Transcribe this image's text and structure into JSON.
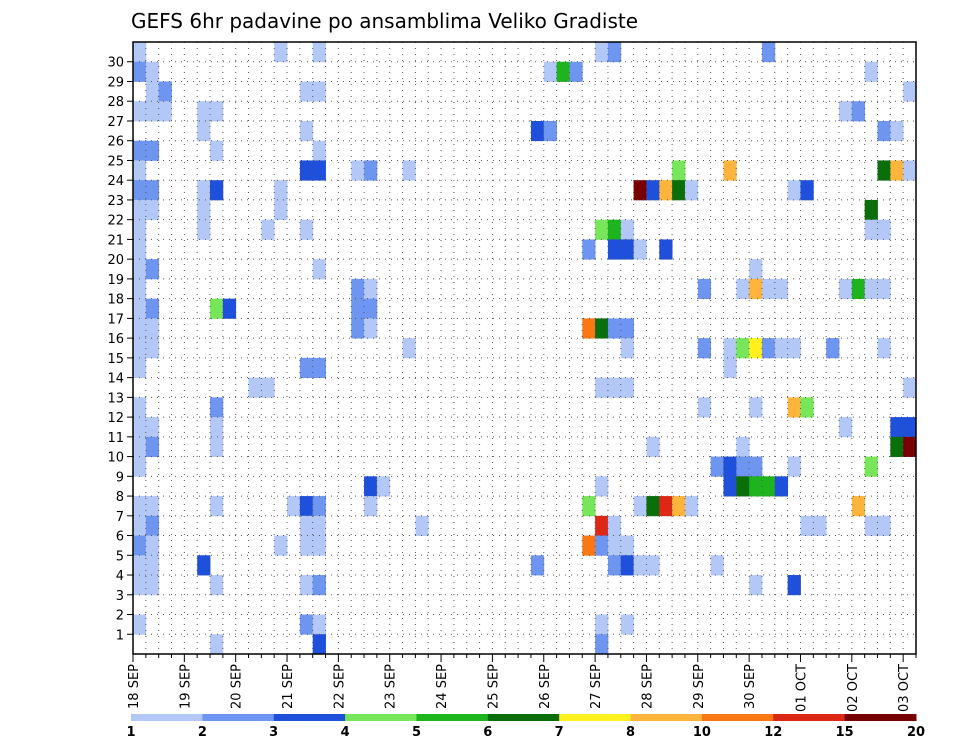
{
  "chart_data": {
    "type": "heatmap",
    "title": "GEFS 6hr padavine po ansamblima Veliko Gradiste",
    "xlabel": "",
    "ylabel": "",
    "x_tick_labels": [
      "18 SEP",
      "19 SEP",
      "20 SEP",
      "21 SEP",
      "22 SEP",
      "23 SEP",
      "24 SEP",
      "25 SEP",
      "26 SEP",
      "27 SEP",
      "28 SEP",
      "29 SEP",
      "30 SEP",
      "01 OCT",
      "02 OCT",
      "03 OCT"
    ],
    "x_range": [
      0,
      61
    ],
    "y_tick_labels": [
      "1",
      "2",
      "3",
      "4",
      "5",
      "6",
      "7",
      "8",
      "9",
      "10",
      "11",
      "12",
      "13",
      "14",
      "15",
      "16",
      "17",
      "18",
      "19",
      "20",
      "21",
      "22",
      "23",
      "24",
      "25",
      "26",
      "27",
      "28",
      "29",
      "30"
    ],
    "y_range": [
      0,
      30
    ],
    "grid": true,
    "color_scale": {
      "colors": [
        "#b4c8f8",
        "#6e96f0",
        "#1e50dc",
        "#78e65a",
        "#1eb41e",
        "#0a6e0a",
        "#fff01e",
        "#ffb43c",
        "#fa7814",
        "#dc2814",
        "#780000"
      ],
      "labels": [
        "1",
        "2",
        "3",
        "4",
        "5",
        "6",
        "7",
        "8",
        "10",
        "12",
        "15",
        "20"
      ]
    },
    "cells": [
      [
        0,
        30,
        0
      ],
      [
        11,
        30,
        0
      ],
      [
        14,
        30,
        0
      ],
      [
        36,
        30,
        0
      ],
      [
        37,
        30,
        1
      ],
      [
        49,
        30,
        1
      ],
      [
        0,
        29,
        1
      ],
      [
        1,
        29,
        0
      ],
      [
        32,
        29,
        0
      ],
      [
        33,
        29,
        4
      ],
      [
        34,
        29,
        1
      ],
      [
        57,
        29,
        0
      ],
      [
        1,
        28,
        0
      ],
      [
        2,
        28,
        1
      ],
      [
        13,
        28,
        0
      ],
      [
        14,
        28,
        0
      ],
      [
        60,
        28,
        0
      ],
      [
        0,
        27,
        0
      ],
      [
        1,
        27,
        0
      ],
      [
        2,
        27,
        0
      ],
      [
        5,
        27,
        0
      ],
      [
        6,
        27,
        0
      ],
      [
        55,
        27,
        0
      ],
      [
        56,
        27,
        1
      ],
      [
        5,
        26,
        0
      ],
      [
        13,
        26,
        0
      ],
      [
        31,
        26,
        2
      ],
      [
        32,
        26,
        1
      ],
      [
        58,
        26,
        1
      ],
      [
        59,
        26,
        0
      ],
      [
        0,
        25,
        1
      ],
      [
        1,
        25,
        1
      ],
      [
        6,
        25,
        0
      ],
      [
        14,
        25,
        0
      ],
      [
        0,
        24,
        0
      ],
      [
        13,
        24,
        2
      ],
      [
        14,
        24,
        2
      ],
      [
        17,
        24,
        0
      ],
      [
        18,
        24,
        1
      ],
      [
        21,
        24,
        0
      ],
      [
        42,
        24,
        3
      ],
      [
        46,
        24,
        7
      ],
      [
        58,
        24,
        5
      ],
      [
        59,
        24,
        7
      ],
      [
        60,
        24,
        0
      ],
      [
        0,
        23,
        1
      ],
      [
        1,
        23,
        1
      ],
      [
        5,
        23,
        0
      ],
      [
        6,
        23,
        2
      ],
      [
        11,
        23,
        0
      ],
      [
        39,
        23,
        10
      ],
      [
        40,
        23,
        2
      ],
      [
        41,
        23,
        7
      ],
      [
        42,
        23,
        5
      ],
      [
        43,
        23,
        0
      ],
      [
        51,
        23,
        0
      ],
      [
        52,
        23,
        2
      ],
      [
        0,
        22,
        0
      ],
      [
        1,
        22,
        0
      ],
      [
        5,
        22,
        0
      ],
      [
        11,
        22,
        0
      ],
      [
        57,
        22,
        5
      ],
      [
        0,
        21,
        0
      ],
      [
        5,
        21,
        0
      ],
      [
        10,
        21,
        0
      ],
      [
        13,
        21,
        0
      ],
      [
        36,
        21,
        3
      ],
      [
        37,
        21,
        4
      ],
      [
        38,
        21,
        0
      ],
      [
        57,
        21,
        0
      ],
      [
        58,
        21,
        0
      ],
      [
        0,
        20,
        0
      ],
      [
        35,
        20,
        1
      ],
      [
        37,
        20,
        2
      ],
      [
        38,
        20,
        2
      ],
      [
        39,
        20,
        0
      ],
      [
        41,
        20,
        2
      ],
      [
        0,
        19,
        0
      ],
      [
        1,
        19,
        1
      ],
      [
        14,
        19,
        0
      ],
      [
        48,
        19,
        0
      ],
      [
        0,
        18,
        0
      ],
      [
        17,
        18,
        1
      ],
      [
        18,
        18,
        0
      ],
      [
        44,
        18,
        1
      ],
      [
        47,
        18,
        0
      ],
      [
        48,
        18,
        7
      ],
      [
        49,
        18,
        0
      ],
      [
        50,
        18,
        0
      ],
      [
        55,
        18,
        0
      ],
      [
        56,
        18,
        4
      ],
      [
        57,
        18,
        0
      ],
      [
        58,
        18,
        0
      ],
      [
        0,
        17,
        0
      ],
      [
        1,
        17,
        1
      ],
      [
        6,
        17,
        3
      ],
      [
        7,
        17,
        2
      ],
      [
        17,
        17,
        1
      ],
      [
        18,
        17,
        1
      ],
      [
        0,
        16,
        0
      ],
      [
        1,
        16,
        0
      ],
      [
        17,
        16,
        1
      ],
      [
        18,
        16,
        0
      ],
      [
        35,
        16,
        8
      ],
      [
        36,
        16,
        5
      ],
      [
        37,
        16,
        1
      ],
      [
        38,
        16,
        1
      ],
      [
        0,
        15,
        0
      ],
      [
        1,
        15,
        0
      ],
      [
        21,
        15,
        0
      ],
      [
        38,
        15,
        0
      ],
      [
        44,
        15,
        1
      ],
      [
        46,
        15,
        0
      ],
      [
        47,
        15,
        3
      ],
      [
        48,
        15,
        6
      ],
      [
        49,
        15,
        1
      ],
      [
        50,
        15,
        0
      ],
      [
        51,
        15,
        0
      ],
      [
        54,
        15,
        1
      ],
      [
        58,
        15,
        0
      ],
      [
        0,
        14,
        0
      ],
      [
        13,
        14,
        1
      ],
      [
        14,
        14,
        1
      ],
      [
        46,
        14,
        0
      ],
      [
        9,
        13,
        0
      ],
      [
        10,
        13,
        0
      ],
      [
        36,
        13,
        0
      ],
      [
        37,
        13,
        0
      ],
      [
        38,
        13,
        0
      ],
      [
        60,
        13,
        0
      ],
      [
        0,
        12,
        0
      ],
      [
        6,
        12,
        1
      ],
      [
        44,
        12,
        0
      ],
      [
        48,
        12,
        0
      ],
      [
        51,
        12,
        7
      ],
      [
        52,
        12,
        3
      ],
      [
        0,
        11,
        0
      ],
      [
        1,
        11,
        0
      ],
      [
        6,
        11,
        0
      ],
      [
        55,
        11,
        0
      ],
      [
        59,
        11,
        2
      ],
      [
        60,
        11,
        2
      ],
      [
        0,
        10,
        0
      ],
      [
        1,
        10,
        1
      ],
      [
        6,
        10,
        0
      ],
      [
        40,
        10,
        0
      ],
      [
        47,
        10,
        0
      ],
      [
        59,
        10,
        5
      ],
      [
        60,
        10,
        10
      ],
      [
        0,
        9,
        0
      ],
      [
        45,
        9,
        1
      ],
      [
        46,
        9,
        2
      ],
      [
        47,
        9,
        1
      ],
      [
        48,
        9,
        1
      ],
      [
        51,
        9,
        0
      ],
      [
        57,
        9,
        3
      ],
      [
        18,
        8,
        2
      ],
      [
        19,
        8,
        0
      ],
      [
        36,
        8,
        0
      ],
      [
        46,
        8,
        2
      ],
      [
        47,
        8,
        5
      ],
      [
        48,
        8,
        4
      ],
      [
        49,
        8,
        4
      ],
      [
        50,
        8,
        2
      ],
      [
        0,
        7,
        0
      ],
      [
        1,
        7,
        0
      ],
      [
        6,
        7,
        0
      ],
      [
        12,
        7,
        0
      ],
      [
        13,
        7,
        2
      ],
      [
        14,
        7,
        1
      ],
      [
        18,
        7,
        0
      ],
      [
        35,
        7,
        3
      ],
      [
        39,
        7,
        0
      ],
      [
        40,
        7,
        5
      ],
      [
        41,
        7,
        9
      ],
      [
        42,
        7,
        7
      ],
      [
        43,
        7,
        0
      ],
      [
        56,
        7,
        7
      ],
      [
        0,
        6,
        0
      ],
      [
        1,
        6,
        1
      ],
      [
        13,
        6,
        0
      ],
      [
        14,
        6,
        0
      ],
      [
        22,
        6,
        0
      ],
      [
        36,
        6,
        9
      ],
      [
        37,
        6,
        0
      ],
      [
        52,
        6,
        0
      ],
      [
        53,
        6,
        0
      ],
      [
        57,
        6,
        0
      ],
      [
        58,
        6,
        0
      ],
      [
        0,
        5,
        1
      ],
      [
        1,
        5,
        0
      ],
      [
        11,
        5,
        0
      ],
      [
        13,
        5,
        0
      ],
      [
        14,
        5,
        0
      ],
      [
        35,
        5,
        8
      ],
      [
        36,
        5,
        1
      ],
      [
        37,
        5,
        0
      ],
      [
        38,
        5,
        0
      ],
      [
        0,
        4,
        0
      ],
      [
        1,
        4,
        0
      ],
      [
        5,
        4,
        2
      ],
      [
        31,
        4,
        1
      ],
      [
        37,
        4,
        1
      ],
      [
        38,
        4,
        2
      ],
      [
        39,
        4,
        0
      ],
      [
        40,
        4,
        0
      ],
      [
        45,
        4,
        0
      ],
      [
        0,
        3,
        0
      ],
      [
        1,
        3,
        0
      ],
      [
        6,
        3,
        0
      ],
      [
        13,
        3,
        0
      ],
      [
        14,
        3,
        1
      ],
      [
        48,
        3,
        0
      ],
      [
        51,
        3,
        2
      ],
      [
        0,
        1,
        0
      ],
      [
        13,
        1,
        1
      ],
      [
        14,
        1,
        0
      ],
      [
        36,
        1,
        0
      ],
      [
        38,
        1,
        0
      ],
      [
        6,
        0,
        0
      ],
      [
        14,
        0,
        2
      ],
      [
        36,
        0,
        1
      ]
    ]
  }
}
